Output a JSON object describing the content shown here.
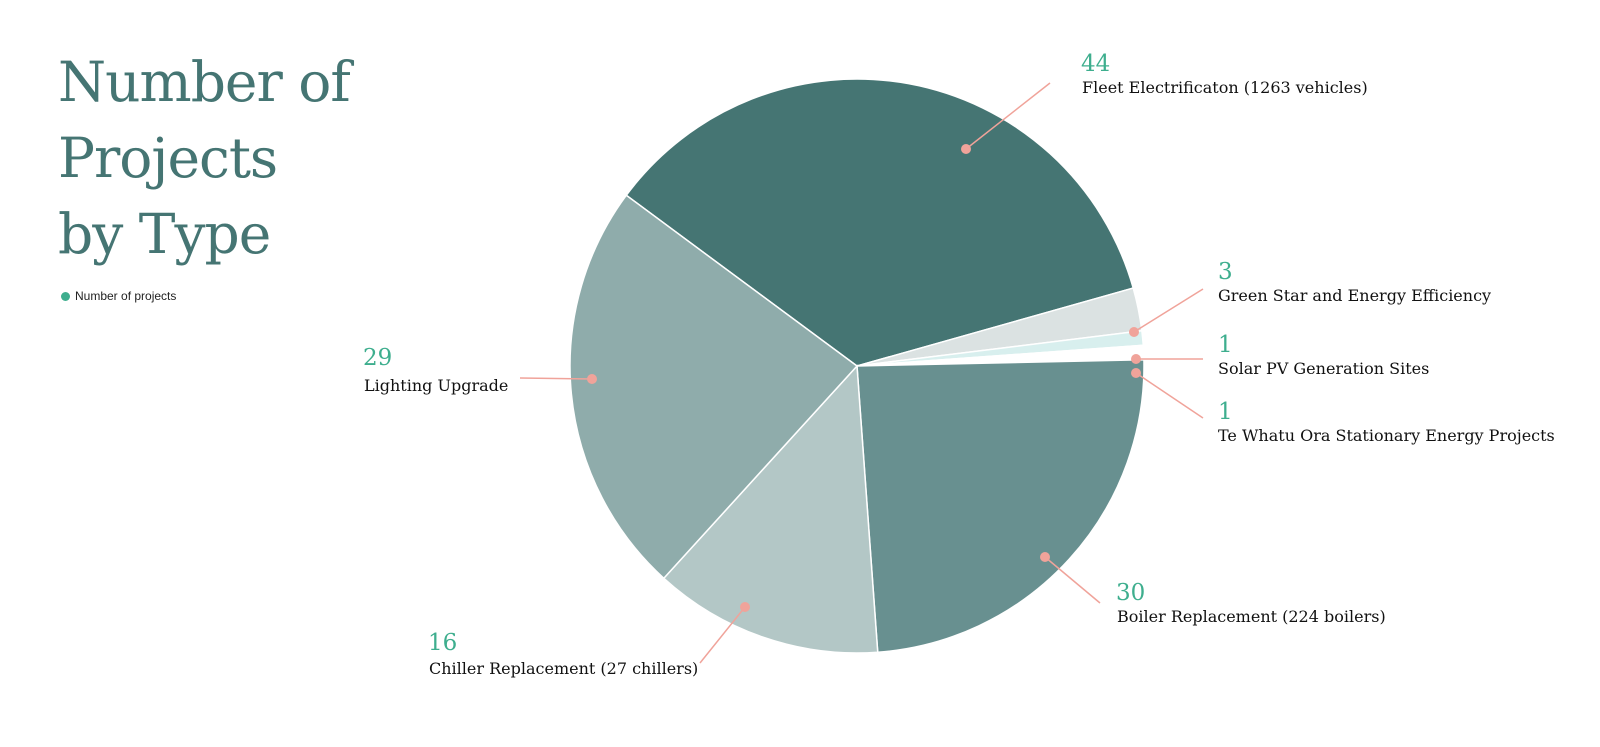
{
  "chart_data": {
    "type": "pie",
    "title_lines": [
      "Number of",
      "Projects",
      "by Type"
    ],
    "legend": [
      {
        "label": "Number of projects",
        "color": "#3eae8e"
      }
    ],
    "slices": [
      {
        "label": "Fleet Electrificaton (1263 vehicles)",
        "value": 44,
        "color": "#457573"
      },
      {
        "label": "Green Star and Energy Efficiency",
        "value": 3,
        "color": "#dbe2e2"
      },
      {
        "label": "Solar PV Generation Sites",
        "value": 1,
        "color": "#d8efee"
      },
      {
        "label": "Te Whatu Ora Stationary Energy Projects",
        "value": 1,
        "color": "#ffffff"
      },
      {
        "label": "Boiler Replacement (224 boilers)",
        "value": 30,
        "color": "#689090"
      },
      {
        "label": "Chiller Replacement (27 chillers)",
        "value": 16,
        "color": "#b3c7c6"
      },
      {
        "label": "Lighting Upgrade",
        "value": 29,
        "color": "#8facab"
      }
    ],
    "value_color": "#3eae8e",
    "leader_color": "#f0a39a"
  }
}
